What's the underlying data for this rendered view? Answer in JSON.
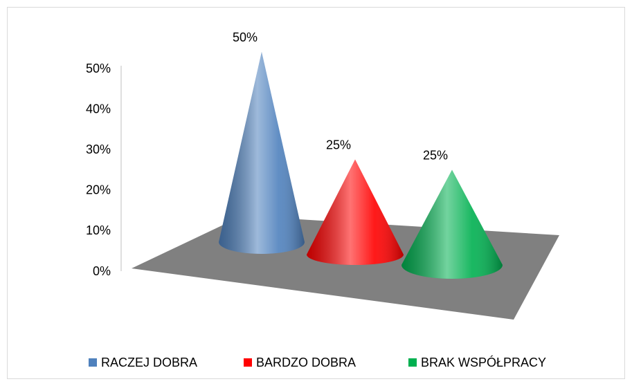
{
  "chart_data": {
    "type": "cone",
    "series": [
      {
        "name": "RACZEJ DOBRA",
        "color": "#4f81bd",
        "values": [
          50
        ],
        "value_labels": [
          "50%"
        ]
      },
      {
        "name": "BARDZO DOBRA",
        "color": "#ff0000",
        "values": [
          25
        ],
        "value_labels": [
          "25%"
        ]
      },
      {
        "name": "BRAK WSPÓŁPRACY",
        "color": "#00b050",
        "values": [
          25
        ],
        "value_labels": [
          "25%"
        ]
      }
    ],
    "ylim": [
      0,
      50
    ],
    "yticks": [
      {
        "value": 0,
        "label": "0%"
      },
      {
        "value": 10,
        "label": "10%"
      },
      {
        "value": 20,
        "label": "20%"
      },
      {
        "value": 30,
        "label": "30%"
      },
      {
        "value": 40,
        "label": "40%"
      },
      {
        "value": 50,
        "label": "50%"
      }
    ],
    "legend": "bottom"
  }
}
